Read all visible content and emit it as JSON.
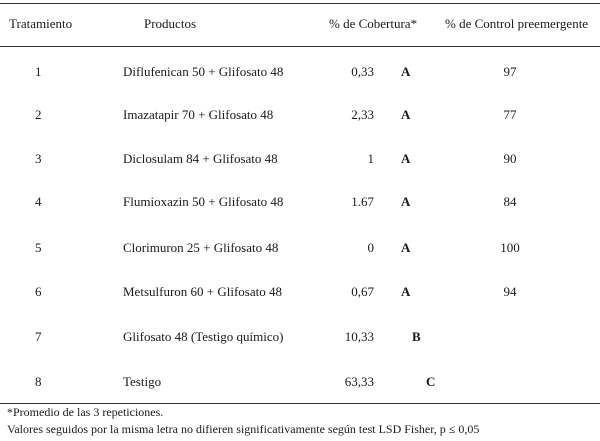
{
  "headers": {
    "tratamiento": "Tratamiento",
    "productos": "Productos",
    "cobertura": "% de Cobertura*",
    "control": "% de Control preemergente"
  },
  "rows": [
    {
      "trat": "1",
      "producto": "Diflufenican 50 + Glifosato 48",
      "cobertura": "0,33",
      "letra": "A",
      "control": "97"
    },
    {
      "trat": "2",
      "producto": "Imazatapir 70 + Glifosato 48",
      "cobertura": "2,33",
      "letra": "A",
      "control": "77"
    },
    {
      "trat": "3",
      "producto": "Diclosulam 84 + Glifosato 48",
      "cobertura": "1",
      "letra": "A",
      "control": "90"
    },
    {
      "trat": "4",
      "producto": "Flumioxazin 50 + Glifosato 48",
      "cobertura": "1.67",
      "letra": "A",
      "control": "84"
    },
    {
      "trat": "5",
      "producto": "Clorimuron 25 + Glifosato 48",
      "cobertura": "0",
      "letra": "A",
      "control": "100"
    },
    {
      "trat": "6",
      "producto": "Metsulfuron 60 + Glifosato 48",
      "cobertura": "0,67",
      "letra": "A",
      "control": "94"
    },
    {
      "trat": "7",
      "producto": "Glifosato 48 (Testigo químico)",
      "cobertura": "10,33",
      "letra": "B",
      "control": ""
    },
    {
      "trat": "8",
      "producto": "Testigo",
      "cobertura": "63,33",
      "letra": "C",
      "control": ""
    }
  ],
  "footnotes": {
    "line1": "*Promedio de las 3 repeticiones.",
    "line2": "Valores seguidos por la misma letra no difieren significativamente según test LSD Fisher, p ≤ 0,05"
  }
}
